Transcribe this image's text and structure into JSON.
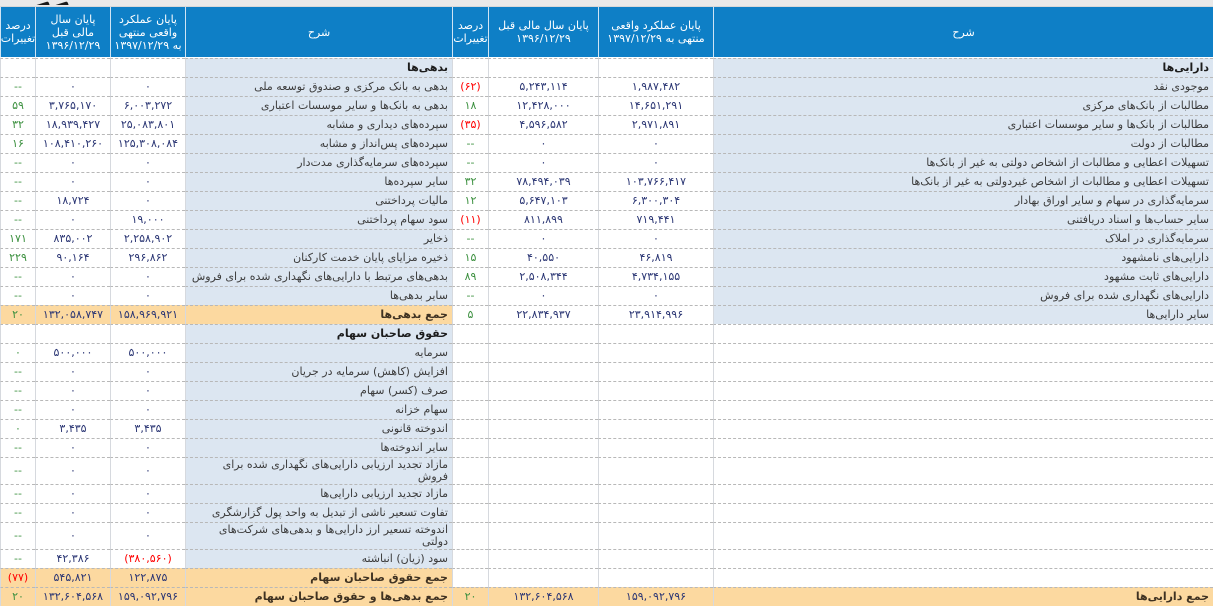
{
  "columns": {
    "description": "شرح",
    "actual": "پایان عملکرد واقعی منتهی به ۱۳۹۷/۱۲/۲۹",
    "previous": "پایان سال مالی قبل ۱۳۹۶/۱۲/۲۹",
    "change": "درصد تغییرات"
  },
  "colors": {
    "header-bg": "#0e7fc6",
    "label-bg": "#dce6f1",
    "total-bg": "#fcd9a0",
    "number": "#2b3674",
    "positive": "#3d9140",
    "negative": "#ff0000"
  },
  "rows": [
    {
      "asset": {
        "kind": "section",
        "label": "دارایی‌ها"
      },
      "liability": {
        "kind": "section",
        "label": "بدهی‌ها"
      }
    },
    {
      "asset": {
        "label": "موجودی نقد",
        "current": "۱,۹۸۷,۴۸۲",
        "previous": "۵,۲۴۳,۱۱۴",
        "change": "(۶۲)"
      },
      "liability": {
        "label": "بدهی به بانک مرکزی و صندوق توسعه ملی",
        "current": "۰",
        "previous": "۰",
        "change": "--"
      }
    },
    {
      "asset": {
        "label": "مطالبات از بانک‌های مرکزی",
        "current": "۱۴,۶۵۱,۲۹۱",
        "previous": "۱۲,۴۲۸,۰۰۰",
        "change": "۱۸"
      },
      "liability": {
        "label": "بدهی به بانک‌ها و سایر موسسات اعتباری",
        "current": "۶,۰۰۳,۲۷۲",
        "previous": "۳,۷۶۵,۱۷۰",
        "change": "۵۹"
      }
    },
    {
      "asset": {
        "label": "مطالبات از بانک‌ها و سایر موسسات اعتباری",
        "current": "۲,۹۷۱,۸۹۱",
        "previous": "۴,۵۹۶,۵۸۲",
        "change": "(۳۵)"
      },
      "liability": {
        "label": "سپرده‌های دیداری و مشابه",
        "current": "۲۵,۰۸۳,۸۰۱",
        "previous": "۱۸,۹۳۹,۴۲۷",
        "change": "۳۲"
      }
    },
    {
      "asset": {
        "label": "مطالبات از دولت",
        "current": "۰",
        "previous": "۰",
        "change": "--"
      },
      "liability": {
        "label": "سپرده‌های پس‌انداز و مشابه",
        "current": "۱۲۵,۳۰۸,۰۸۴",
        "previous": "۱۰۸,۴۱۰,۲۶۰",
        "change": "۱۶"
      }
    },
    {
      "asset": {
        "label": "تسهیلات اعطایی و مطالبات از اشخاص دولتی به غیر از بانک‌ها",
        "current": "۰",
        "previous": "۰",
        "change": "--"
      },
      "liability": {
        "label": "سپرده‌های سرمایه‌گذاری مدت‌دار",
        "current": "۰",
        "previous": "۰",
        "change": "--"
      }
    },
    {
      "asset": {
        "label": "تسهیلات اعطایی و مطالبات از اشخاص غیردولتی به غیر از بانک‌ها",
        "current": "۱۰۳,۷۶۶,۴۱۷",
        "previous": "۷۸,۴۹۴,۰۳۹",
        "change": "۳۲"
      },
      "liability": {
        "label": "سایر سپرده‌ها",
        "current": "۰",
        "previous": "۰",
        "change": "--"
      }
    },
    {
      "asset": {
        "label": "سرمایه‌گذاری در سهام و سایر اوراق بهادار",
        "current": "۶,۳۰۰,۳۰۴",
        "previous": "۵,۶۴۷,۱۰۳",
        "change": "۱۲"
      },
      "liability": {
        "label": "مالیات پرداختنی",
        "current": "۰",
        "previous": "۱۸,۷۲۴",
        "change": "--"
      }
    },
    {
      "asset": {
        "label": "سایر حساب‌ها و اسناد دریافتنی",
        "current": "۷۱۹,۴۴۱",
        "previous": "۸۱۱,۸۹۹",
        "change": "(۱۱)"
      },
      "liability": {
        "label": "سود سهام پرداختنی",
        "current": "۱۹,۰۰۰",
        "previous": "۰",
        "change": "--"
      }
    },
    {
      "asset": {
        "label": "سرمایه‌گذاری در املاک",
        "current": "۰",
        "previous": "۰",
        "change": "--"
      },
      "liability": {
        "label": "ذخایر",
        "current": "۲,۲۵۸,۹۰۲",
        "previous": "۸۳۵,۰۰۲",
        "change": "۱۷۱"
      }
    },
    {
      "asset": {
        "label": "دارایی‌های نامشهود",
        "current": "۴۶,۸۱۹",
        "previous": "۴۰,۵۵۰",
        "change": "۱۵"
      },
      "liability": {
        "label": "ذخیره مزایای پایان خدمت کارکنان",
        "current": "۲۹۶,۸۶۲",
        "previous": "۹۰,۱۶۴",
        "change": "۲۲۹"
      }
    },
    {
      "asset": {
        "label": "دارایی‌های ثابت مشهود",
        "current": "۴,۷۳۴,۱۵۵",
        "previous": "۲,۵۰۸,۳۴۴",
        "change": "۸۹"
      },
      "liability": {
        "label": "بدهی‌های مرتبط با دارایی‌های نگهداری شده برای فروش",
        "current": "۰",
        "previous": "۰",
        "change": "--"
      }
    },
    {
      "asset": {
        "label": "دارایی‌های نگهداری شده برای فروش",
        "current": "۰",
        "previous": "۰",
        "change": "--"
      },
      "liability": {
        "label": "سایر بدهی‌ها",
        "current": "۰",
        "previous": "۰",
        "change": "--"
      }
    },
    {
      "asset": {
        "label": "سایر دارایی‌ها",
        "current": "۲۳,۹۱۴,۹۹۶",
        "previous": "۲۲,۸۳۴,۹۳۷",
        "change": "۵"
      },
      "liability": {
        "kind": "total",
        "label": "جمع بدهی‌ها",
        "current": "۱۵۸,۹۶۹,۹۲۱",
        "previous": "۱۳۲,۰۵۸,۷۴۷",
        "change": "۲۰"
      }
    },
    {
      "asset": {
        "kind": "empty"
      },
      "liability": {
        "kind": "section",
        "label": "حقوق صاحبان سهام"
      }
    },
    {
      "asset": {
        "kind": "empty"
      },
      "liability": {
        "label": "سرمایه",
        "current": "۵۰۰,۰۰۰",
        "previous": "۵۰۰,۰۰۰",
        "change": "۰"
      }
    },
    {
      "asset": {
        "kind": "empty"
      },
      "liability": {
        "label": "افزایش (کاهش) سرمایه در جریان",
        "current": "۰",
        "previous": "۰",
        "change": "--"
      }
    },
    {
      "asset": {
        "kind": "empty"
      },
      "liability": {
        "label": "صرف (کسر) سهام",
        "current": "۰",
        "previous": "۰",
        "change": "--"
      }
    },
    {
      "asset": {
        "kind": "empty"
      },
      "liability": {
        "label": "سهام خزانه",
        "current": "۰",
        "previous": "۰",
        "change": "--"
      }
    },
    {
      "asset": {
        "kind": "empty"
      },
      "liability": {
        "label": "اندوخته قانونی",
        "current": "۳,۴۳۵",
        "previous": "۳,۴۳۵",
        "change": "۰"
      }
    },
    {
      "asset": {
        "kind": "empty"
      },
      "liability": {
        "label": "سایر اندوخته‌ها",
        "current": "۰",
        "previous": "۰",
        "change": "--"
      }
    },
    {
      "asset": {
        "kind": "empty"
      },
      "liability": {
        "label": "مازاد تجدید ارزیابی دارایی‌های نگهداری شده برای فروش",
        "current": "۰",
        "previous": "۰",
        "change": "--"
      }
    },
    {
      "asset": {
        "kind": "empty"
      },
      "liability": {
        "label": "مازاد تجدید ارزیابی دارایی‌ها",
        "current": "۰",
        "previous": "۰",
        "change": "--"
      }
    },
    {
      "asset": {
        "kind": "empty"
      },
      "liability": {
        "label": "تفاوت تسعیر ناشی از تبدیل به واحد پول گزارشگری",
        "current": "۰",
        "previous": "۰",
        "change": "--"
      }
    },
    {
      "asset": {
        "kind": "empty"
      },
      "liability": {
        "label": "اندوخته تسعیر ارز دارایی‌ها و بدهی‌های شرکت‌های دولتی",
        "current": "۰",
        "previous": "۰",
        "change": "--"
      }
    },
    {
      "asset": {
        "kind": "empty"
      },
      "liability": {
        "label": "سود (زیان) انباشته",
        "current": "(۳۸۰,۵۶۰)",
        "previous": "۴۲,۳۸۶",
        "change": "--"
      }
    },
    {
      "asset": {
        "kind": "empty"
      },
      "liability": {
        "kind": "total",
        "label": "جمع حقوق صاحبان سهام",
        "current": "۱۲۲,۸۷۵",
        "previous": "۵۴۵,۸۲۱",
        "change": "(۷۷)"
      }
    },
    {
      "asset": {
        "kind": "total",
        "label": "جمع دارایی‌ها",
        "current": "۱۵۹,۰۹۲,۷۹۶",
        "previous": "۱۳۲,۶۰۴,۵۶۸",
        "change": "۲۰"
      },
      "liability": {
        "kind": "total",
        "label": "جمع بدهی‌ها و حقوق صاحبان سهام",
        "current": "۱۵۹,۰۹۲,۷۹۶",
        "previous": "۱۳۲,۶۰۴,۵۶۸",
        "change": "۲۰"
      }
    }
  ]
}
